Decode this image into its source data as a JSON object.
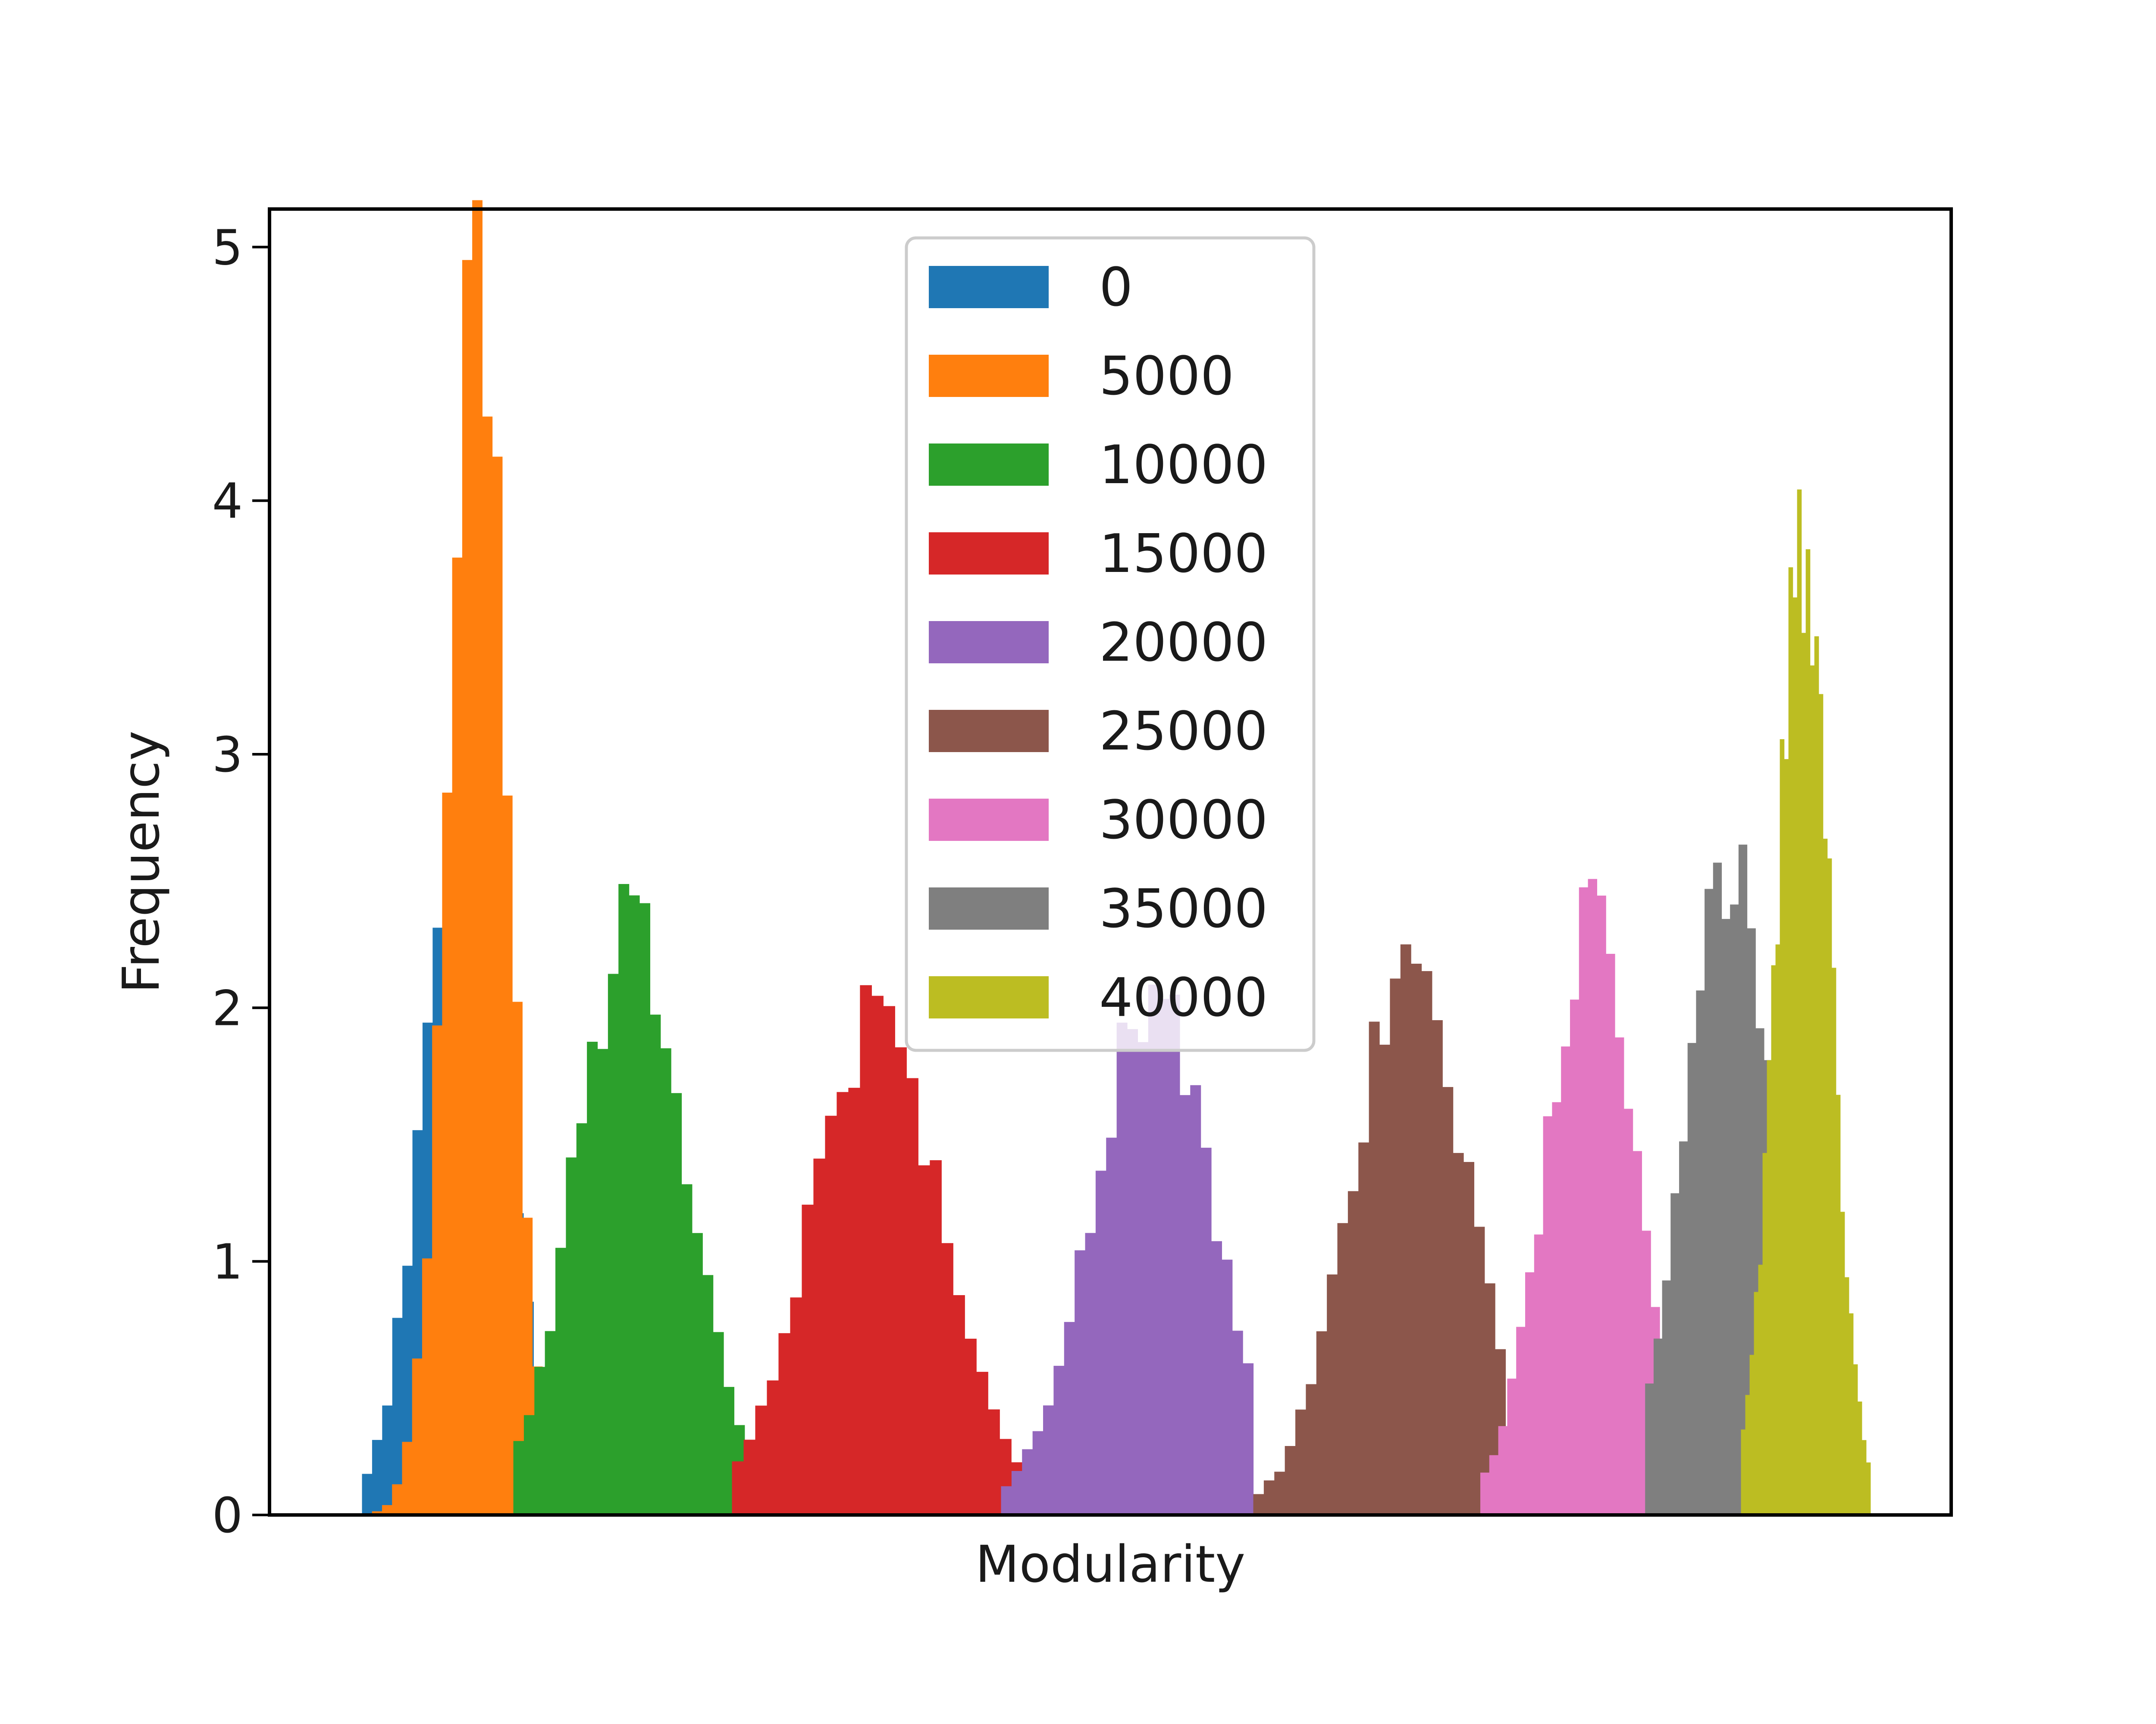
{
  "chart_data": {
    "type": "histogram",
    "title": "",
    "xlabel": "Modularity",
    "ylabel": "Frequency",
    "ylim": [
      0,
      5.15
    ],
    "xlim": [
      0,
      100
    ],
    "x_tick_labels": [],
    "y_ticks": [
      {
        "value": 0,
        "label": "0"
      },
      {
        "value": 1,
        "label": "1"
      },
      {
        "value": 2,
        "label": "2"
      },
      {
        "value": 3,
        "label": "3"
      },
      {
        "value": 4,
        "label": "4"
      },
      {
        "value": 5,
        "label": "5"
      }
    ],
    "legend_position": "top-center",
    "grid": false,
    "series": [
      {
        "name": "0",
        "color": "#1f77b4",
        "mean": 11.6,
        "std": 2.45,
        "peak": 2.78,
        "range": [
          5.5,
          17.5
        ],
        "bins": 20
      },
      {
        "name": "5000",
        "color": "#ff7f0e",
        "mean": 12.4,
        "std": 1.75,
        "peak": 4.9,
        "range": [
          5.5,
          19.8
        ],
        "bins": 24
      },
      {
        "name": "10000",
        "color": "#2ca02c",
        "mean": 21.5,
        "std": 3.3,
        "peak": 2.3,
        "range": [
          14.5,
          29.5
        ],
        "bins": 24
      },
      {
        "name": "15000",
        "color": "#d62728",
        "mean": 36.1,
        "std": 3.9,
        "peak": 1.98,
        "range": [
          27.5,
          44.8
        ],
        "bins": 25
      },
      {
        "name": "20000",
        "color": "#9467bd",
        "mean": 52.5,
        "std": 3.6,
        "peak": 2.05,
        "range": [
          43.5,
          58.5
        ],
        "bins": 24
      },
      {
        "name": "25000",
        "color": "#8c564b",
        "mean": 67.8,
        "std": 3.5,
        "peak": 2.16,
        "range": [
          58.5,
          73.5
        ],
        "bins": 24
      },
      {
        "name": "30000",
        "color": "#e377c2",
        "mean": 78.5,
        "std": 2.7,
        "peak": 2.3,
        "range": [
          72.0,
          84.8
        ],
        "bins": 24
      },
      {
        "name": "35000",
        "color": "#7f7f7f",
        "mean": 86.7,
        "std": 2.55,
        "peak": 2.58,
        "range": [
          81.8,
          91.9
        ],
        "bins": 20
      },
      {
        "name": "40000",
        "color": "#bcbd22",
        "mean": 91.2,
        "std": 1.6,
        "peak": 3.8,
        "range": [
          87.5,
          95.2
        ],
        "bins": 30
      }
    ]
  }
}
